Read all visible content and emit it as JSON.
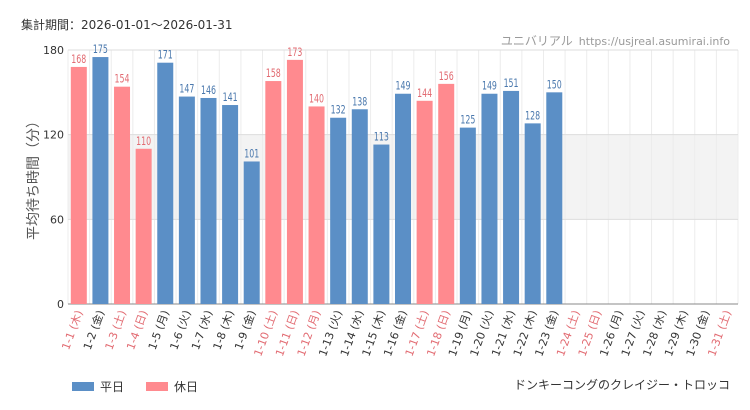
{
  "header": {
    "period_label": "集計期間：2026-01-01～2026-01-31",
    "site_name": "ユニバリアル",
    "site_url": "https://usjreal.asumirai.info"
  },
  "footer": {
    "attraction": "ドンキーコングのクレイジー・トロッコ"
  },
  "colors": {
    "weekday": "#5b8fc6",
    "holiday": "#ff8a8f",
    "holiday_text": "#e26b72"
  },
  "chart_data": {
    "type": "bar",
    "ylabel": "平均待ち時間（分）",
    "ylim": [
      0,
      180
    ],
    "yticks": [
      0,
      60,
      120,
      180
    ],
    "shaded_band": [
      60,
      120
    ],
    "legend": [
      {
        "key": "weekday",
        "label": "平日"
      },
      {
        "key": "holiday",
        "label": "休日"
      }
    ],
    "categories": [
      "1-1 (木)",
      "1-2 (金)",
      "1-3 (土)",
      "1-4 (日)",
      "1-5 (月)",
      "1-6 (火)",
      "1-7 (水)",
      "1-8 (木)",
      "1-9 (金)",
      "1-10 (土)",
      "1-11 (日)",
      "1-12 (月)",
      "1-13 (火)",
      "1-14 (水)",
      "1-15 (木)",
      "1-16 (金)",
      "1-17 (土)",
      "1-18 (日)",
      "1-19 (月)",
      "1-20 (火)",
      "1-21 (水)",
      "1-22 (木)",
      "1-23 (金)",
      "1-24 (土)",
      "1-25 (日)",
      "1-26 (月)",
      "1-27 (火)",
      "1-28 (水)",
      "1-29 (木)",
      "1-30 (金)",
      "1-31 (土)"
    ],
    "values": [
      168,
      175,
      154,
      110,
      171,
      147,
      146,
      141,
      101,
      158,
      173,
      140,
      132,
      138,
      113,
      149,
      144,
      156,
      125,
      149,
      151,
      128,
      150,
      null,
      null,
      null,
      null,
      null,
      null,
      null,
      null
    ],
    "day_type": [
      "holiday",
      "weekday",
      "holiday",
      "holiday",
      "weekday",
      "weekday",
      "weekday",
      "weekday",
      "weekday",
      "holiday",
      "holiday",
      "holiday",
      "weekday",
      "weekday",
      "weekday",
      "weekday",
      "holiday",
      "holiday",
      "weekday",
      "weekday",
      "weekday",
      "weekday",
      "weekday",
      "holiday",
      "holiday",
      "weekday",
      "weekday",
      "weekday",
      "weekday",
      "weekday",
      "holiday"
    ]
  }
}
